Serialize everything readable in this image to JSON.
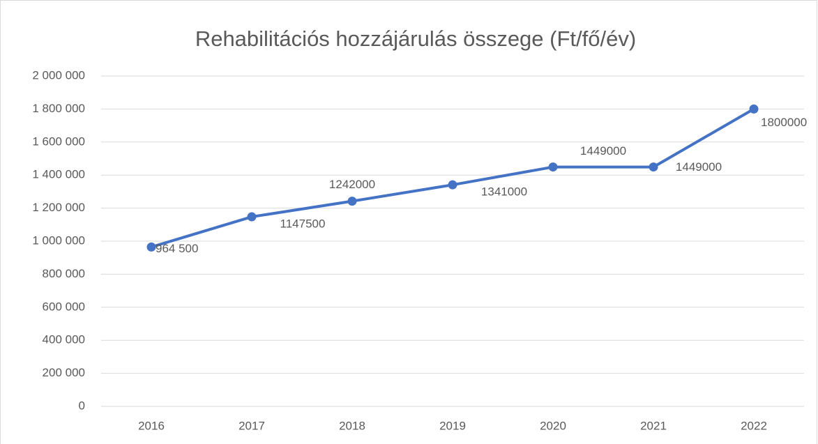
{
  "chart_data": {
    "type": "line",
    "title": "Rehabilitációs hozzájárulás összege (Ft/fő/év)",
    "categories": [
      "2016",
      "2017",
      "2018",
      "2019",
      "2020",
      "2021",
      "2022"
    ],
    "series": [
      {
        "name": "Rehabilitációs hozzájárulás összege (Ft/fő/év)",
        "color": "#4472c4",
        "values": [
          964500,
          1147500,
          1242000,
          1341000,
          1449000,
          1449000,
          1800000
        ],
        "value_labels": [
          "964 500",
          "1147500",
          "1242000",
          "1341000",
          "1449000",
          "1449000",
          "1800000"
        ]
      }
    ],
    "ylim": [
      0,
      2000000
    ],
    "yticks": [
      0,
      {
        "value": 200000,
        "label": "200 000"
      },
      {
        "value": 400000,
        "label": "400 000"
      },
      {
        "value": 600000,
        "label": "600 000"
      },
      {
        "value": 800000,
        "label": "800 000"
      },
      {
        "value": 1000000,
        "label": "1 000 000"
      },
      {
        "value": 1200000,
        "label": "1 200 000"
      },
      {
        "value": 1400000,
        "label": "1 400 000"
      },
      {
        "value": 1600000,
        "label": "1 600 000"
      },
      {
        "value": 1800000,
        "label": "1 800 000"
      },
      {
        "value": 2000000,
        "label": "2 000 000"
      }
    ],
    "grid": true
  }
}
